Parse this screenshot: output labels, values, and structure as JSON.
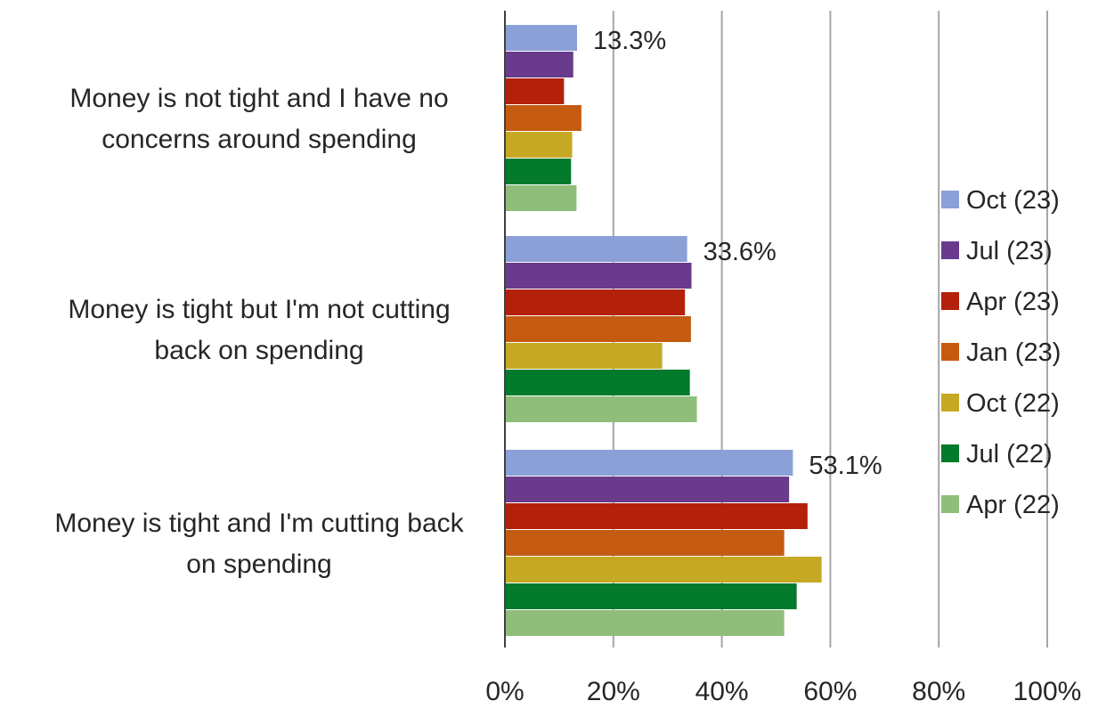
{
  "chart_data": {
    "type": "bar",
    "orientation": "horizontal",
    "categories": [
      [
        "Money is not tight and I have no",
        "concerns around spending"
      ],
      [
        "Money is tight but I'm not cutting",
        "back on spending"
      ],
      [
        "Money is tight and I'm cutting back",
        "on spending"
      ]
    ],
    "series": [
      {
        "name": "Oct (23)",
        "color": "#8aa0d6",
        "values": [
          13.3,
          33.6,
          53.1
        ]
      },
      {
        "name": "Jul (23)",
        "color": "#6a3a8c",
        "values": [
          12.6,
          34.4,
          52.4
        ]
      },
      {
        "name": "Apr (23)",
        "color": "#b3210a",
        "values": [
          10.9,
          33.2,
          55.8
        ]
      },
      {
        "name": "Jan (23)",
        "color": "#c55b11",
        "values": [
          14.1,
          34.3,
          51.5
        ]
      },
      {
        "name": "Oct (22)",
        "color": "#c5a823",
        "values": [
          12.4,
          29.0,
          58.4
        ]
      },
      {
        "name": "Jul (22)",
        "color": "#037a2c",
        "values": [
          12.2,
          34.1,
          53.8
        ]
      },
      {
        "name": "Apr (22)",
        "color": "#8fbe7a",
        "values": [
          13.2,
          35.4,
          51.5
        ]
      }
    ],
    "data_labels": [
      "13.3%",
      "33.6%",
      "53.1%"
    ],
    "xlim": [
      0,
      100
    ],
    "x_ticks": [
      "0%",
      "20%",
      "40%",
      "60%",
      "80%",
      "100%"
    ],
    "grid": "vertical",
    "legend_position": "right",
    "title": "",
    "xlabel": "",
    "ylabel": ""
  }
}
